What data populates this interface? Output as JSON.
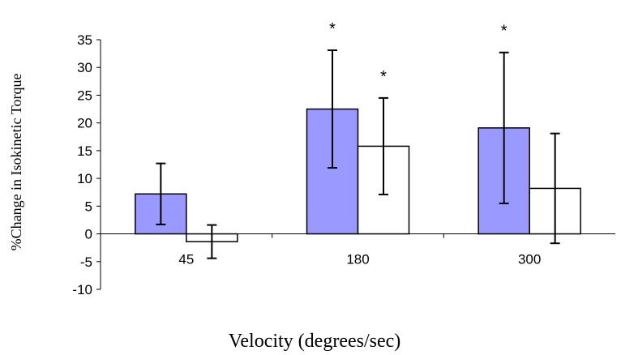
{
  "chart_data": {
    "type": "bar",
    "categories": [
      "45",
      "180",
      "300"
    ],
    "series": [
      {
        "fill": "#9999ff",
        "values": [
          7.2,
          22.5,
          19.1
        ],
        "error": [
          5.5,
          10.6,
          13.6
        ],
        "significance": [
          "",
          "*",
          "*"
        ]
      },
      {
        "fill": "#ffffff",
        "values": [
          -1.4,
          15.8,
          8.2
        ],
        "error": [
          3.0,
          8.7,
          9.9
        ],
        "significance": [
          "",
          "*",
          ""
        ]
      }
    ],
    "ylim": [
      -10,
      35
    ],
    "yticks": [
      "-10",
      "-5",
      "0",
      "5",
      "10",
      "15",
      "20",
      "25",
      "30",
      "35"
    ],
    "ylabel": "%Change in Isokinetic Torque",
    "xlabel": "Velocity (degrees/sec)",
    "grid": false,
    "legend": "none"
  }
}
